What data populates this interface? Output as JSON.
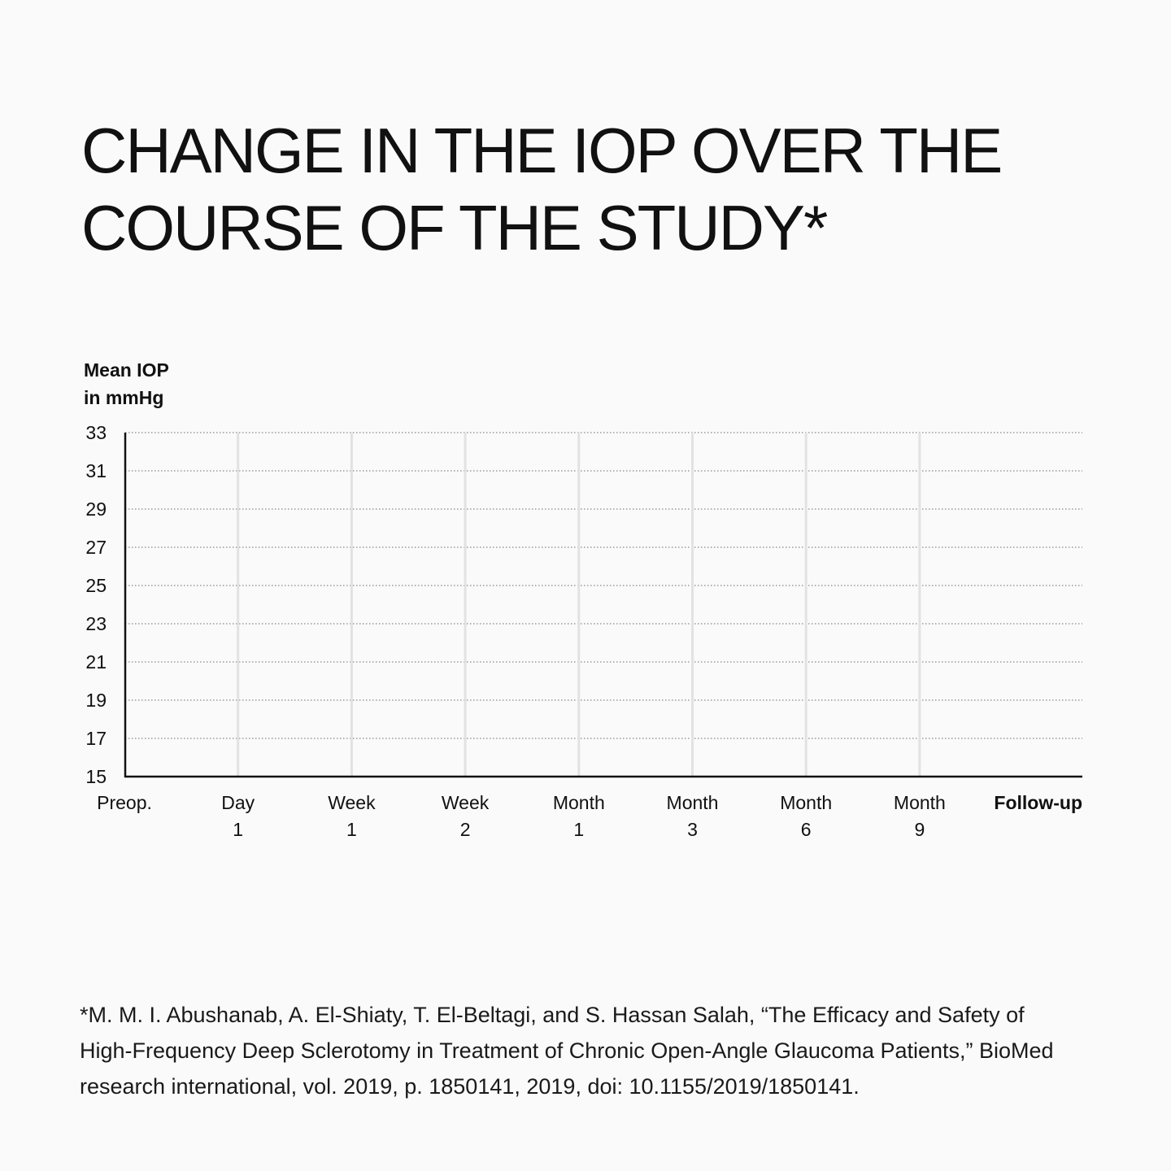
{
  "title": {
    "line1": "CHANGE IN THE IOP OVER THE",
    "line2": "COURSE OF THE STUDY*"
  },
  "chart_data": {
    "type": "line",
    "title": "CHANGE IN THE IOP OVER THE COURSE OF THE STUDY*",
    "ylabel": [
      "Mean IOP",
      "in mmHg"
    ],
    "xlabel": "Follow-up",
    "ylim": [
      15,
      33
    ],
    "yticks": [
      "33",
      "31",
      "29",
      "27",
      "25",
      "23",
      "21",
      "19",
      "17",
      "15"
    ],
    "categories": [
      [
        "Preop."
      ],
      [
        "Day",
        "1"
      ],
      [
        "Week",
        "1"
      ],
      [
        "Week",
        "2"
      ],
      [
        "Month",
        "1"
      ],
      [
        "Month",
        "3"
      ],
      [
        "Month",
        "6"
      ],
      [
        "Month",
        "9"
      ]
    ],
    "series": [],
    "grid": true,
    "colors": {
      "axis": "#111111",
      "horizontal_grid": "#888888",
      "vertical_grid": "#e2e2e2"
    }
  },
  "footnote": {
    "line1": "*M. M. I. Abushanab, A. El-Shiaty, T. El-Beltagi, and S. Hassan Salah, “The Efficacy and Safety of",
    "line2": "High-Frequency Deep Sclerotomy in Treatment of Chronic Open-Angle Glaucoma Patients,” BioMed",
    "line3": "research international, vol. 2019, p. 1850141, 2019, doi: 10.1155/2019/1850141."
  }
}
